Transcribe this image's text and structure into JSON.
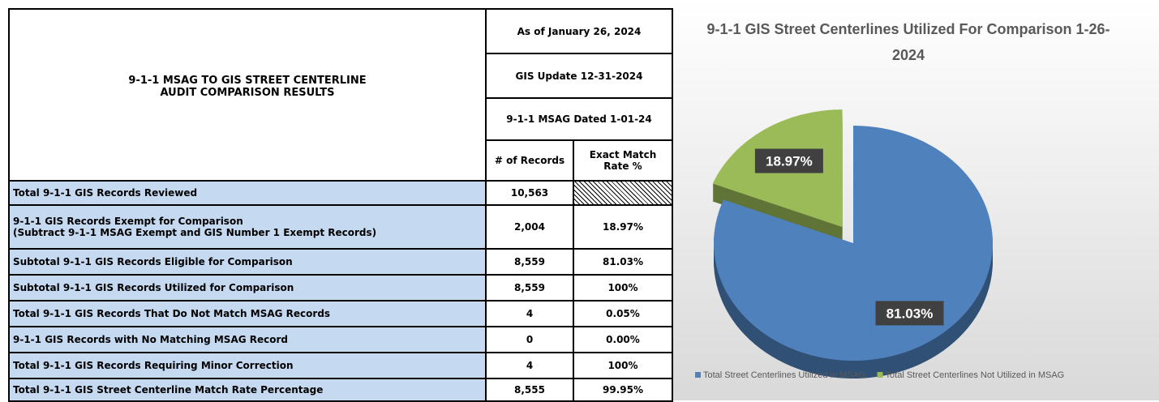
{
  "table": {
    "title_lines": [
      "9-1-1 MSAG TO GIS STREET CENTERLINE",
      "AUDIT COMPARISON RESULTS"
    ],
    "header_rows": [
      "As of January 26, 2024",
      "GIS Update 12-31-2024",
      "9-1-1 MSAG Dated 1-01-24"
    ],
    "columns": [
      "# of Records",
      "Exact Match Rate %"
    ],
    "rows": [
      {
        "label": "Total 9-1-1 GIS Records Reviewed",
        "records": "10,563"
      },
      {
        "label": "9-1-1 GIS Records Exempt for Comparison",
        "sublabel": "(Subtract 9-1-1 MSAG Exempt and GIS Number 1 Exempt Records)",
        "records": "2,004",
        "rate": "18.97%"
      },
      {
        "label": "Subtotal 9-1-1 GIS Records Eligible for Comparison",
        "records": "8,559",
        "rate": "81.03%"
      },
      {
        "label": "Subtotal 9-1-1 GIS Records Utilized for Comparison",
        "records": "8,559",
        "rate": "100%"
      },
      {
        "label": "Total 9-1-1 GIS Records That Do Not Match MSAG Records",
        "records": "4",
        "rate": "0.05%"
      },
      {
        "label": "9-1-1 GIS Records with No Matching MSAG Record",
        "records": "0",
        "rate": "0.00%"
      },
      {
        "label": "Total 9-1-1 GIS Records Requiring Minor Correction",
        "records": "4",
        "rate": "100%"
      },
      {
        "label": "Total 9-1-1 GIS Street Centerline Match Rate Percentage",
        "records": "8,555",
        "rate": "99.95%"
      }
    ]
  },
  "chart_data": {
    "type": "pie",
    "title": "9-1-1 GIS Street Centerlines Utilized For Comparison 1-26-2024",
    "categories": [
      "Total Street Centerlines Utilized in MSAG",
      "Total Street Centerlines Not Utilized in MSAG"
    ],
    "values": [
      81.03,
      18.97
    ],
    "value_labels": [
      "81.03%",
      "18.97%"
    ],
    "colors": [
      "#4f81bd",
      "#9bbb59"
    ],
    "legend": "bottom"
  }
}
